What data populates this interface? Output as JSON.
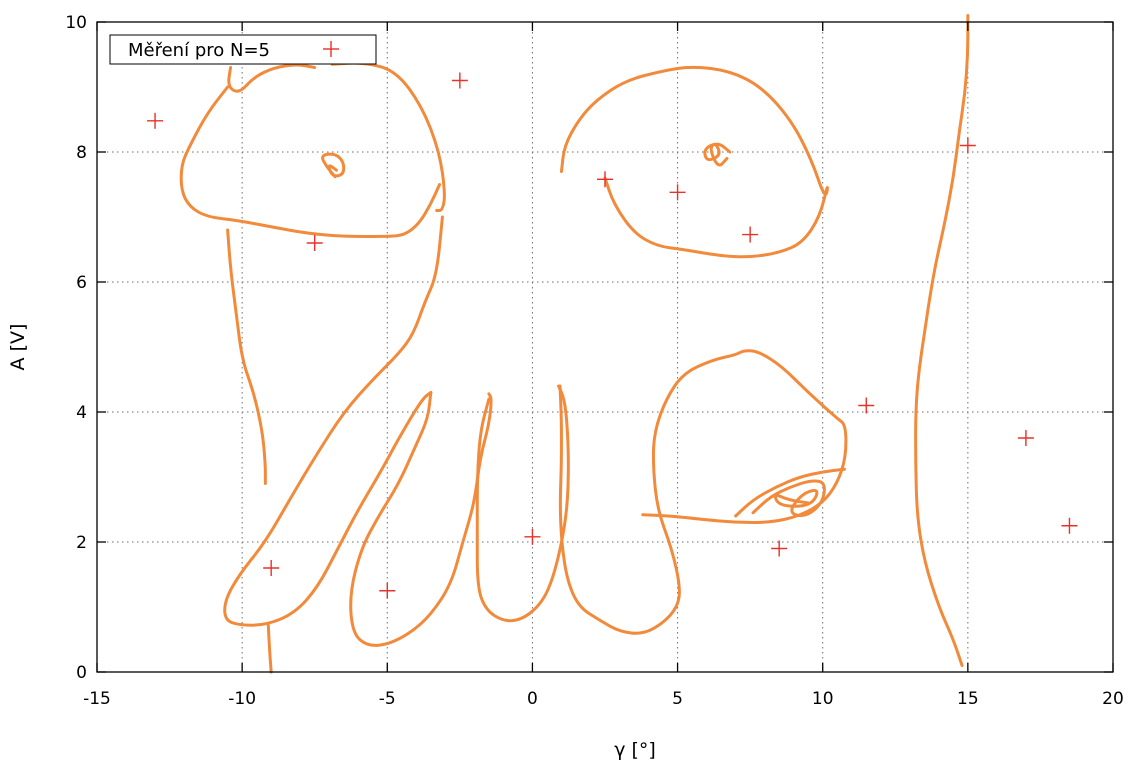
{
  "chart_data": {
    "type": "scatter",
    "xlabel": "γ [°]",
    "ylabel": "A [V]",
    "xlim": [
      -15,
      20
    ],
    "ylim": [
      0,
      10
    ],
    "x_ticks": [
      "-15",
      "-10",
      "-5",
      "0",
      "5",
      "10",
      "15",
      "20"
    ],
    "y_ticks": [
      "0",
      "2",
      "4",
      "6",
      "8",
      "10"
    ],
    "grid": true,
    "legend_position": "top-left",
    "colors": {
      "marker": "#e8312a",
      "doodle": "#f28a3c",
      "frame": "#000000",
      "grid": "#6e6e6e"
    },
    "series": [
      {
        "name": "Měření pro N=5",
        "marker": "plus",
        "points": [
          {
            "x": -13,
            "y": 8.48
          },
          {
            "x": -7.5,
            "y": 6.6
          },
          {
            "x": -2.5,
            "y": 9.1
          },
          {
            "x": -9,
            "y": 1.6
          },
          {
            "x": -5,
            "y": 1.25
          },
          {
            "x": 0,
            "y": 2.08
          },
          {
            "x": 2.5,
            "y": 7.58
          },
          {
            "x": 5,
            "y": 7.38
          },
          {
            "x": 7.5,
            "y": 6.73
          },
          {
            "x": 8.5,
            "y": 1.9
          },
          {
            "x": 11.5,
            "y": 4.1
          },
          {
            "x": 15,
            "y": 8.1
          },
          {
            "x": 17,
            "y": 3.6
          },
          {
            "x": 18.5,
            "y": 2.25
          }
        ]
      }
    ],
    "freehand_strokes": [
      [
        [
          -10.4,
          9.3
        ],
        [
          -10.5,
          9.0
        ],
        [
          -10.1,
          8.9
        ],
        [
          -9.6,
          9.15
        ],
        [
          -8.9,
          9.3
        ],
        [
          -8.1,
          9.35
        ],
        [
          -7.5,
          9.3
        ]
      ],
      [
        [
          -10.5,
          9.0
        ],
        [
          -11.2,
          8.6
        ],
        [
          -11.8,
          8.1
        ],
        [
          -12.1,
          7.8
        ],
        [
          -12.1,
          7.4
        ],
        [
          -11.8,
          7.15
        ],
        [
          -11.2,
          7.0
        ],
        [
          -10.2,
          6.95
        ],
        [
          -9.0,
          6.85
        ],
        [
          -7.8,
          6.75
        ],
        [
          -6.5,
          6.7
        ],
        [
          -5.0,
          6.7
        ],
        [
          -4.4,
          6.72
        ],
        [
          -3.9,
          6.9
        ],
        [
          -3.5,
          7.2
        ],
        [
          -3.2,
          7.5
        ]
      ],
      [
        [
          -6.9,
          9.35
        ],
        [
          -5.8,
          9.38
        ],
        [
          -4.7,
          9.25
        ],
        [
          -3.8,
          8.7
        ],
        [
          -3.2,
          8.0
        ],
        [
          -3.0,
          7.35
        ],
        [
          -3.1,
          7.1
        ],
        [
          -3.3,
          7.1
        ]
      ],
      [
        [
          -6.8,
          7.62
        ],
        [
          -7.1,
          7.78
        ],
        [
          -7.3,
          7.95
        ],
        [
          -6.8,
          7.98
        ],
        [
          -6.5,
          7.85
        ],
        [
          -6.5,
          7.65
        ],
        [
          -6.9,
          7.62
        ],
        [
          -7.05,
          7.82
        ],
        [
          -6.75,
          7.72
        ]
      ],
      [
        [
          -10.5,
          6.8
        ],
        [
          -10.4,
          6.2
        ],
        [
          -10.2,
          5.5
        ],
        [
          -10.0,
          4.8
        ],
        [
          -9.6,
          4.3
        ],
        [
          -9.3,
          3.7
        ],
        [
          -9.2,
          3.2
        ],
        [
          -9.2,
          2.9
        ]
      ],
      [
        [
          -3.1,
          7.0
        ],
        [
          -3.3,
          6.1
        ],
        [
          -3.7,
          5.7
        ],
        [
          -4.1,
          5.2
        ],
        [
          -4.6,
          4.9
        ],
        [
          -5.5,
          4.5
        ],
        [
          -6.5,
          4.0
        ],
        [
          -7.5,
          3.3
        ],
        [
          -8.3,
          2.7
        ],
        [
          -9.2,
          2.0
        ],
        [
          -10.1,
          1.5
        ],
        [
          -10.6,
          1.1
        ],
        [
          -10.6,
          0.8
        ],
        [
          -10.1,
          0.72
        ],
        [
          -9.2,
          0.72
        ],
        [
          -8.2,
          0.9
        ],
        [
          -7.4,
          1.3
        ],
        [
          -6.7,
          1.9
        ],
        [
          -6.0,
          2.5
        ],
        [
          -5.2,
          3.1
        ],
        [
          -4.6,
          3.6
        ],
        [
          -3.8,
          4.2
        ],
        [
          -3.5,
          4.3
        ]
      ],
      [
        [
          -9.1,
          0.72
        ],
        [
          -9.05,
          0.3
        ],
        [
          -9.0,
          0.0
        ]
      ],
      [
        [
          -3.5,
          4.3
        ],
        [
          -3.6,
          3.9
        ],
        [
          -4.0,
          3.5
        ],
        [
          -4.6,
          2.9
        ],
        [
          -5.3,
          2.4
        ],
        [
          -5.9,
          1.9
        ],
        [
          -6.3,
          1.2
        ],
        [
          -6.2,
          0.6
        ],
        [
          -5.7,
          0.4
        ],
        [
          -5.0,
          0.42
        ],
        [
          -4.2,
          0.6
        ],
        [
          -3.5,
          0.88
        ],
        [
          -2.8,
          1.35
        ],
        [
          -2.4,
          2.0
        ],
        [
          -2.0,
          2.6
        ],
        [
          -1.8,
          3.3
        ],
        [
          -1.5,
          3.8
        ],
        [
          -1.4,
          4.2
        ],
        [
          -1.5,
          4.28
        ]
      ],
      [
        [
          -1.5,
          4.2
        ],
        [
          -1.8,
          3.7
        ],
        [
          -1.9,
          3.0
        ],
        [
          -1.9,
          2.2
        ],
        [
          -1.9,
          1.3
        ],
        [
          -1.6,
          0.95
        ],
        [
          -1.0,
          0.78
        ],
        [
          -0.4,
          0.8
        ],
        [
          0.2,
          1.0
        ],
        [
          0.6,
          1.3
        ],
        [
          0.95,
          1.85
        ],
        [
          1.2,
          2.5
        ],
        [
          1.25,
          3.2
        ],
        [
          1.2,
          3.8
        ],
        [
          1.1,
          4.2
        ],
        [
          0.9,
          4.4
        ]
      ],
      [
        [
          0.95,
          4.4
        ],
        [
          1.0,
          3.9
        ],
        [
          1.0,
          3.2
        ],
        [
          0.95,
          2.6
        ],
        [
          1.0,
          2.0
        ],
        [
          1.2,
          1.4
        ],
        [
          1.6,
          1.0
        ],
        [
          2.3,
          0.8
        ],
        [
          3.0,
          0.62
        ],
        [
          3.8,
          0.58
        ],
        [
          4.5,
          0.75
        ],
        [
          5.0,
          1.0
        ],
        [
          5.1,
          1.3
        ],
        [
          4.8,
          1.9
        ],
        [
          4.3,
          2.5
        ],
        [
          4.15,
          3.2
        ],
        [
          4.2,
          3.7
        ],
        [
          4.6,
          4.2
        ],
        [
          5.2,
          4.6
        ],
        [
          6.2,
          4.8
        ],
        [
          7.0,
          4.88
        ],
        [
          7.3,
          4.95
        ],
        [
          7.8,
          4.93
        ],
        [
          8.6,
          4.7
        ],
        [
          9.5,
          4.3
        ],
        [
          10.5,
          3.9
        ],
        [
          10.8,
          3.8
        ],
        [
          10.8,
          3.3
        ],
        [
          10.5,
          2.9
        ],
        [
          10.0,
          2.6
        ],
        [
          9.2,
          2.4
        ],
        [
          8.2,
          2.3
        ],
        [
          7.0,
          2.3
        ],
        [
          5.8,
          2.35
        ],
        [
          4.8,
          2.4
        ],
        [
          3.8,
          2.42
        ]
      ],
      [
        [
          7.0,
          2.4
        ],
        [
          7.6,
          2.65
        ],
        [
          8.4,
          2.85
        ],
        [
          9.2,
          3.0
        ],
        [
          10.0,
          3.08
        ],
        [
          10.75,
          3.12
        ]
      ],
      [
        [
          7.6,
          2.45
        ],
        [
          8.2,
          2.7
        ],
        [
          8.9,
          2.85
        ],
        [
          9.6,
          2.95
        ],
        [
          10.1,
          2.92
        ],
        [
          10.0,
          2.6
        ],
        [
          9.4,
          2.38
        ],
        [
          8.8,
          2.45
        ],
        [
          9.3,
          2.75
        ],
        [
          9.9,
          2.82
        ],
        [
          9.6,
          2.55
        ],
        [
          8.5,
          2.55
        ],
        [
          8.3,
          2.75
        ],
        [
          8.8,
          2.65
        ],
        [
          9.5,
          2.6
        ]
      ],
      [
        [
          1.0,
          7.7
        ],
        [
          1.1,
          8.1
        ],
        [
          1.6,
          8.5
        ],
        [
          2.2,
          8.8
        ],
        [
          3.2,
          9.1
        ],
        [
          4.5,
          9.25
        ],
        [
          5.5,
          9.32
        ],
        [
          6.8,
          9.25
        ],
        [
          7.9,
          9.0
        ],
        [
          8.9,
          8.5
        ],
        [
          9.6,
          7.9
        ],
        [
          10.1,
          7.25
        ],
        [
          10.2,
          7.55
        ],
        [
          9.9,
          7.0
        ],
        [
          9.3,
          6.6
        ],
        [
          8.5,
          6.45
        ],
        [
          7.5,
          6.38
        ],
        [
          6.5,
          6.4
        ],
        [
          5.2,
          6.5
        ],
        [
          4.3,
          6.55
        ],
        [
          3.5,
          6.75
        ],
        [
          2.8,
          7.2
        ],
        [
          2.5,
          7.6
        ]
      ],
      [
        [
          6.8,
          8.0
        ],
        [
          6.4,
          8.15
        ],
        [
          5.9,
          8.05
        ],
        [
          6.0,
          7.85
        ],
        [
          6.5,
          7.95
        ],
        [
          6.3,
          8.15
        ],
        [
          6.1,
          8.05
        ],
        [
          6.4,
          7.75
        ],
        [
          6.7,
          7.9
        ]
      ],
      [
        [
          15.0,
          10.1
        ],
        [
          15.0,
          9.5
        ],
        [
          14.9,
          8.9
        ],
        [
          14.7,
          8.3
        ],
        [
          14.5,
          7.6
        ],
        [
          14.2,
          6.9
        ],
        [
          13.9,
          6.3
        ],
        [
          13.7,
          5.8
        ],
        [
          13.5,
          5.2
        ],
        [
          13.3,
          4.6
        ],
        [
          13.2,
          4.0
        ],
        [
          13.2,
          3.2
        ],
        [
          13.25,
          2.4
        ],
        [
          13.5,
          1.7
        ],
        [
          14.0,
          1.0
        ],
        [
          14.5,
          0.5
        ],
        [
          14.8,
          0.1
        ]
      ]
    ]
  }
}
